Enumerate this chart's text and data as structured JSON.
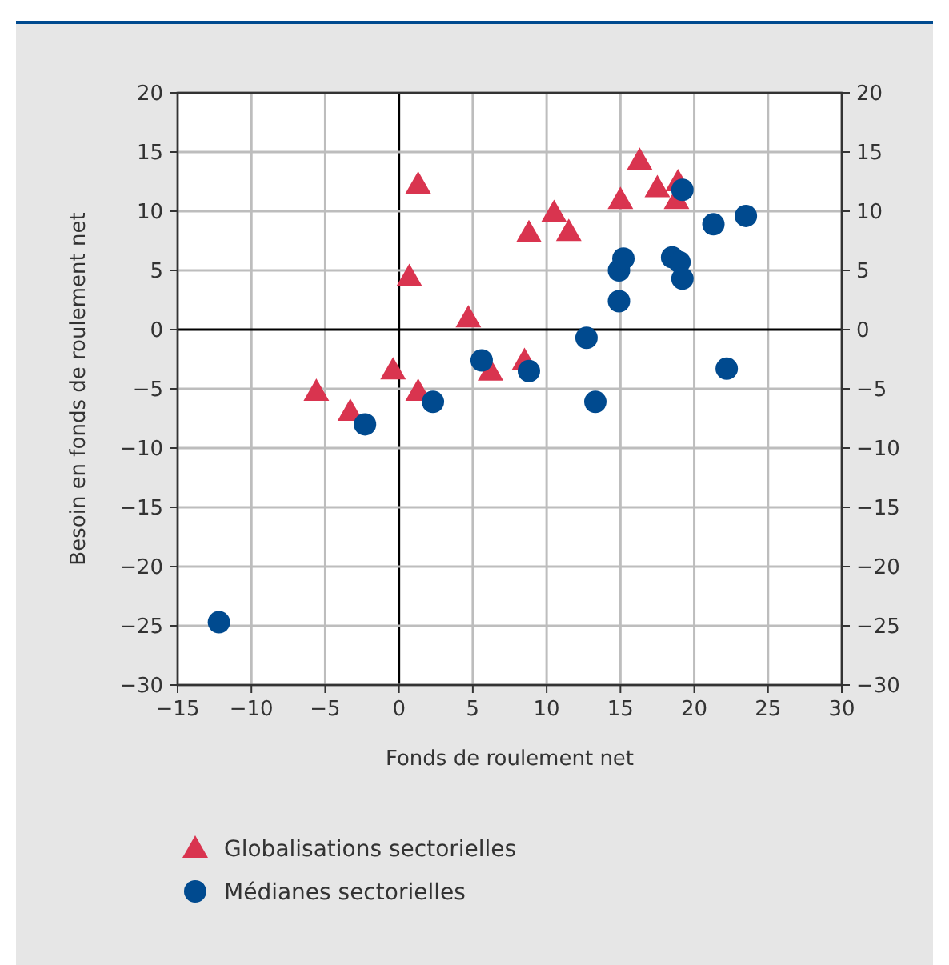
{
  "chart_data": {
    "type": "scatter",
    "xlabel": "Fonds de roulement net",
    "ylabel": "Besoin en fonds de roulement net",
    "xlim": [
      -15,
      30
    ],
    "xticks": [
      -15,
      -10,
      -5,
      0,
      5,
      10,
      15,
      20,
      25,
      30
    ],
    "ylim": [
      -30,
      20
    ],
    "yticks": [
      -30,
      -25,
      -20,
      -15,
      -10,
      -5,
      0,
      5,
      10,
      15,
      20
    ],
    "y2lim": [
      -30,
      20
    ],
    "y2ticks": [
      -30,
      -25,
      -20,
      -15,
      -10,
      -5,
      0,
      5,
      10,
      15,
      20
    ],
    "grid": true,
    "legend": "bottom",
    "series": [
      {
        "name": "Globalisations sectorielles",
        "color": "#d9344f",
        "marker": "triangle",
        "x": [
          1.3,
          0.7,
          4.7,
          -0.4,
          1.3,
          -5.6,
          -3.3,
          6.2,
          8.5,
          8.8,
          10.5,
          11.5,
          15,
          16.3,
          17.5,
          18.9,
          18.8
        ],
        "values": [
          12.3,
          4.5,
          1.0,
          -3.4,
          -5.2,
          -5.2,
          -6.9,
          -3.5,
          -2.6,
          8.2,
          9.9,
          8.3,
          11,
          14.3,
          12,
          12.5,
          11
        ]
      },
      {
        "name": "Médianes sectorielles",
        "color": "#004a8f",
        "marker": "circle",
        "x": [
          -12.2,
          -2.3,
          2.3,
          5.6,
          8.8,
          12.7,
          13.3,
          14.9,
          14.9,
          15.2,
          18.5,
          19,
          19.2,
          19.2,
          21.3,
          23.5,
          22.2
        ],
        "values": [
          -24.7,
          -8.0,
          -6.1,
          -2.6,
          -3.5,
          -0.7,
          -6.1,
          2.4,
          5,
          6,
          6.1,
          5.7,
          4.3,
          11.8,
          8.9,
          9.6,
          -3.3
        ]
      }
    ]
  }
}
